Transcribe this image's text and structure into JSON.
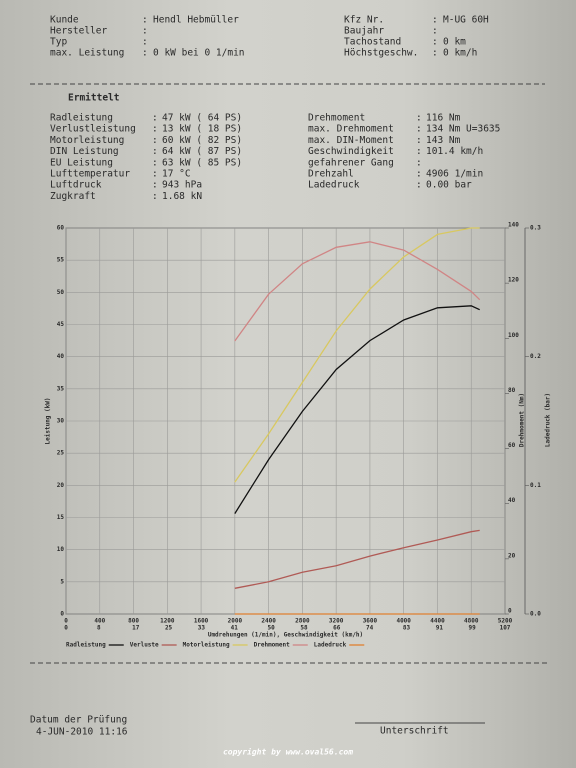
{
  "header": {
    "left": [
      [
        "Kunde",
        ":",
        "Hendl Hebmüller"
      ],
      [
        "Hersteller",
        ":"
      ],
      [
        "Typ",
        ":"
      ],
      [
        "max. Leistung",
        ":",
        "0 kW bei 0 1/min"
      ]
    ],
    "right": [
      [
        "Kfz Nr.",
        ":",
        "M-UG 60H"
      ],
      [
        "Baujahr",
        ":"
      ],
      [
        "Tachostand",
        ":",
        "0 km"
      ],
      [
        "Höchstgeschw.",
        ":",
        "0 km/h"
      ]
    ]
  },
  "results": {
    "title": "Ermittelt",
    "left": [
      [
        "Radleistung",
        ":",
        "47 kW ( 64 PS)"
      ],
      [
        "Verlustleistung",
        ":",
        "13 kW ( 18 PS)"
      ],
      [
        "Motorleistung",
        ":",
        "60 kW ( 82 PS)"
      ],
      [
        "DIN Leistung",
        ":",
        "64 kW ( 87 PS)"
      ],
      [
        "EU Leistung",
        ":",
        "63 kW ( 85 PS)"
      ],
      [
        "Lufttemperatur",
        ":",
        "17 °C"
      ],
      [
        "Luftdruck",
        ":",
        "943 hPa"
      ],
      [
        "Zugkraft",
        ":",
        "1.68 kN"
      ]
    ],
    "right": [
      [
        "Drehmoment",
        ":",
        "116 Nm"
      ],
      [
        "max. Drehmoment",
        ":",
        "134 Nm U=3635"
      ],
      [
        "max. DIN-Moment",
        ":",
        "143 Nm"
      ],
      [
        "Geschwindigkeit",
        ":",
        "101.4 km/h"
      ],
      [
        "gefahrener Gang",
        ":"
      ],
      [
        "Drehzahl",
        ":",
        "4906 1/min"
      ],
      [
        "Ladedruck",
        ":",
        "0.00 bar"
      ]
    ]
  },
  "chart_data": {
    "type": "line",
    "x_label": "Umdrehungen (1/min), Geschwindigkeit (km/h)",
    "y_label": "Leistung (kW)",
    "y2_label": "Drehmoment (Nm)",
    "y3_label": "Ladedruck (bar)",
    "x": [
      2000,
      2400,
      2800,
      3200,
      3600,
      4000,
      4400,
      4800,
      4900
    ],
    "series": [
      {
        "name": "Radleistung",
        "color": "#111111",
        "values": [
          15.6,
          24,
          31.5,
          38,
          42.5,
          45.7,
          47.6,
          47.9,
          47.3
        ]
      },
      {
        "name": "Verluste",
        "color": "#b05a55",
        "values": [
          4,
          5,
          6.5,
          7.5,
          9,
          10.3,
          11.5,
          12.8,
          13
        ]
      },
      {
        "name": "Motorleistung",
        "color": "#d8c860",
        "values": [
          20.5,
          28,
          36,
          44,
          50.5,
          55.5,
          59,
          60,
          60
        ]
      },
      {
        "name": "Drehmoment",
        "color": "#d08585",
        "axis": "y2",
        "values": [
          99,
          116,
          127,
          133,
          135,
          132,
          125,
          117,
          114
        ]
      },
      {
        "name": "Ladedruck",
        "color": "#e08030",
        "axis": "y3",
        "values": [
          0,
          0,
          0,
          0,
          0,
          0,
          0,
          0,
          0
        ]
      }
    ],
    "xlim": [
      0,
      5200
    ],
    "xticks": [
      0,
      400,
      800,
      1200,
      1600,
      2000,
      2400,
      2800,
      3200,
      3600,
      4000,
      4400,
      4800,
      5200
    ],
    "x2lim": [
      0,
      107
    ],
    "x2ticks": [
      0,
      8,
      17,
      25,
      33,
      41,
      50,
      58,
      66,
      74,
      83,
      91,
      99,
      107
    ],
    "ylim": [
      0,
      60
    ],
    "yticks": [
      0,
      5,
      10,
      15,
      20,
      25,
      30,
      35,
      40,
      45,
      50,
      55,
      60
    ],
    "y2lim": [
      0,
      140
    ],
    "y2ticks": [
      0,
      20,
      40,
      60,
      80,
      100,
      120,
      140
    ],
    "y3lim": [
      0,
      0.3
    ],
    "y3ticks": [
      {
        "value": 0,
        "label": "0.0"
      },
      {
        "value": 0.1,
        "label": "0.1"
      },
      {
        "value": 0.2,
        "label": "0.2"
      },
      {
        "value": 0.3,
        "label": "0.3"
      }
    ],
    "grid": true
  },
  "footer": {
    "date_label": "Datum der Prüfung",
    "date": "4-JUN-2010 11:16",
    "signature": "Unterschrift",
    "copyright": "copyright by www.oval56.com"
  }
}
